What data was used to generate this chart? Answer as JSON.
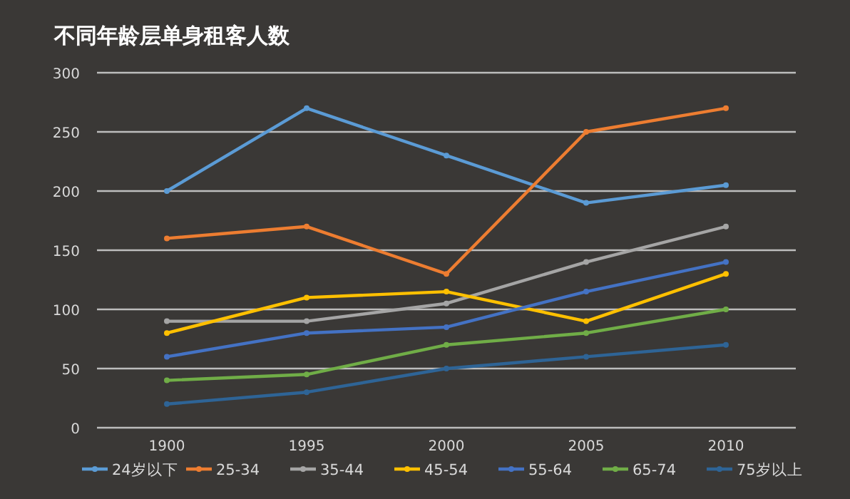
{
  "chart_data": {
    "type": "line",
    "title": "不同年龄层单身租客人数",
    "categories": [
      "1900",
      "1995",
      "2000",
      "2005",
      "2010"
    ],
    "series": [
      {
        "name": "24岁以下",
        "color": "#5b9bd5",
        "values": [
          200,
          270,
          230,
          190,
          205
        ]
      },
      {
        "name": "25-34",
        "color": "#ed7d31",
        "values": [
          160,
          170,
          130,
          250,
          270
        ]
      },
      {
        "name": "35-44",
        "color": "#a5a5a5",
        "values": [
          90,
          90,
          105,
          140,
          170
        ]
      },
      {
        "name": "45-54",
        "color": "#ffc000",
        "values": [
          80,
          110,
          115,
          90,
          130
        ]
      },
      {
        "name": "55-64",
        "color": "#4472c4",
        "values": [
          60,
          80,
          85,
          115,
          140
        ]
      },
      {
        "name": "65-74",
        "color": "#70ad47",
        "values": [
          40,
          45,
          70,
          80,
          100
        ]
      },
      {
        "name": "75岁以上",
        "color": "#2e6496",
        "values": [
          20,
          30,
          50,
          60,
          70
        ]
      }
    ],
    "ylim": [
      0,
      300
    ],
    "yticks": [
      0,
      50,
      100,
      150,
      200,
      250,
      300
    ],
    "grid": "y",
    "legend": "bottom",
    "marker": "circle",
    "line_style": "solid"
  }
}
